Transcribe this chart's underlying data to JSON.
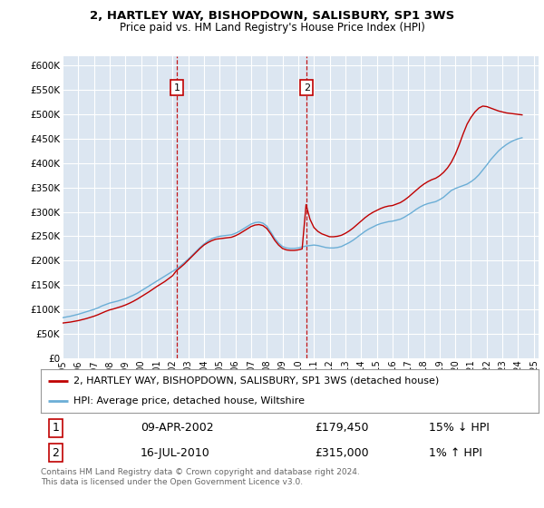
{
  "title1": "2, HARTLEY WAY, BISHOPDOWN, SALISBURY, SP1 3WS",
  "title2": "Price paid vs. HM Land Registry's House Price Index (HPI)",
  "legend_line1": "2, HARTLEY WAY, BISHOPDOWN, SALISBURY, SP1 3WS (detached house)",
  "legend_line2": "HPI: Average price, detached house, Wiltshire",
  "sale1_label": "1",
  "sale1_date": "09-APR-2002",
  "sale1_price": "£179,450",
  "sale1_hpi": "15% ↓ HPI",
  "sale1_year": 2002.27,
  "sale1_value": 179450,
  "sale2_label": "2",
  "sale2_date": "16-JUL-2010",
  "sale2_price": "£315,000",
  "sale2_hpi": "1% ↑ HPI",
  "sale2_year": 2010.54,
  "sale2_value": 315000,
  "hpi_color": "#6baed6",
  "price_color": "#c00000",
  "marker_box_color": "#c00000",
  "background_plot": "#dce6f1",
  "background_fig": "#ffffff",
  "grid_color": "#ffffff",
  "footnote": "Contains HM Land Registry data © Crown copyright and database right 2024.\nThis data is licensed under the Open Government Licence v3.0.",
  "ylim": [
    0,
    620000
  ],
  "yticks": [
    0,
    50000,
    100000,
    150000,
    200000,
    250000,
    300000,
    350000,
    400000,
    450000,
    500000,
    550000,
    600000
  ],
  "hpi_years": [
    1995.0,
    1995.25,
    1995.5,
    1995.75,
    1996.0,
    1996.25,
    1996.5,
    1996.75,
    1997.0,
    1997.25,
    1997.5,
    1997.75,
    1998.0,
    1998.25,
    1998.5,
    1998.75,
    1999.0,
    1999.25,
    1999.5,
    1999.75,
    2000.0,
    2000.25,
    2000.5,
    2000.75,
    2001.0,
    2001.25,
    2001.5,
    2001.75,
    2002.0,
    2002.25,
    2002.5,
    2002.75,
    2003.0,
    2003.25,
    2003.5,
    2003.75,
    2004.0,
    2004.25,
    2004.5,
    2004.75,
    2005.0,
    2005.25,
    2005.5,
    2005.75,
    2006.0,
    2006.25,
    2006.5,
    2006.75,
    2007.0,
    2007.25,
    2007.5,
    2007.75,
    2008.0,
    2008.25,
    2008.5,
    2008.75,
    2009.0,
    2009.25,
    2009.5,
    2009.75,
    2010.0,
    2010.25,
    2010.5,
    2010.75,
    2011.0,
    2011.25,
    2011.5,
    2011.75,
    2012.0,
    2012.25,
    2012.5,
    2012.75,
    2013.0,
    2013.25,
    2013.5,
    2013.75,
    2014.0,
    2014.25,
    2014.5,
    2014.75,
    2015.0,
    2015.25,
    2015.5,
    2015.75,
    2016.0,
    2016.25,
    2016.5,
    2016.75,
    2017.0,
    2017.25,
    2017.5,
    2017.75,
    2018.0,
    2018.25,
    2018.5,
    2018.75,
    2019.0,
    2019.25,
    2019.5,
    2019.75,
    2020.0,
    2020.25,
    2020.5,
    2020.75,
    2021.0,
    2021.25,
    2021.5,
    2021.75,
    2022.0,
    2022.25,
    2022.5,
    2022.75,
    2023.0,
    2023.25,
    2023.5,
    2023.75,
    2024.0,
    2024.25
  ],
  "hpi_values": [
    83000,
    84500,
    86000,
    88000,
    90000,
    92500,
    95000,
    97500,
    100000,
    103000,
    107000,
    110000,
    113000,
    115000,
    117000,
    119500,
    122000,
    125500,
    129000,
    133000,
    138000,
    143000,
    148000,
    153000,
    158000,
    163000,
    168000,
    173000,
    178000,
    183000,
    189000,
    196000,
    203000,
    211000,
    219000,
    227000,
    234000,
    240000,
    245000,
    248000,
    250000,
    251000,
    252000,
    253000,
    256000,
    260000,
    265000,
    270000,
    275000,
    278000,
    279000,
    277000,
    271000,
    259000,
    246000,
    236000,
    229000,
    226000,
    225000,
    225000,
    226000,
    228000,
    230000,
    231000,
    232000,
    231000,
    229000,
    227000,
    226000,
    226000,
    227000,
    229000,
    233000,
    237000,
    242000,
    248000,
    254000,
    260000,
    265000,
    269000,
    273000,
    276000,
    278000,
    280000,
    281000,
    283000,
    285000,
    289000,
    294000,
    299000,
    305000,
    310000,
    314000,
    317000,
    319000,
    321000,
    325000,
    330000,
    337000,
    344000,
    348000,
    351000,
    354000,
    357000,
    362000,
    368000,
    376000,
    386000,
    396000,
    407000,
    416000,
    425000,
    432000,
    438000,
    443000,
    447000,
    450000,
    452000
  ],
  "price_years": [
    1995.0,
    1995.25,
    1995.5,
    1995.75,
    1996.0,
    1996.25,
    1996.5,
    1996.75,
    1997.0,
    1997.25,
    1997.5,
    1997.75,
    1998.0,
    1998.25,
    1998.5,
    1998.75,
    1999.0,
    1999.25,
    1999.5,
    1999.75,
    2000.0,
    2000.25,
    2000.5,
    2000.75,
    2001.0,
    2001.25,
    2001.5,
    2001.75,
    2002.0,
    2002.25,
    2002.5,
    2002.75,
    2003.0,
    2003.25,
    2003.5,
    2003.75,
    2004.0,
    2004.25,
    2004.5,
    2004.75,
    2005.0,
    2005.25,
    2005.5,
    2005.75,
    2006.0,
    2006.25,
    2006.5,
    2006.75,
    2007.0,
    2007.25,
    2007.5,
    2007.75,
    2008.0,
    2008.25,
    2008.5,
    2008.75,
    2009.0,
    2009.25,
    2009.5,
    2009.75,
    2010.0,
    2010.25,
    2010.5,
    2010.75,
    2011.0,
    2011.25,
    2011.5,
    2011.75,
    2012.0,
    2012.25,
    2012.5,
    2012.75,
    2013.0,
    2013.25,
    2013.5,
    2013.75,
    2014.0,
    2014.25,
    2014.5,
    2014.75,
    2015.0,
    2015.25,
    2015.5,
    2015.75,
    2016.0,
    2016.25,
    2016.5,
    2016.75,
    2017.0,
    2017.25,
    2017.5,
    2017.75,
    2018.0,
    2018.25,
    2018.5,
    2018.75,
    2019.0,
    2019.25,
    2019.5,
    2019.75,
    2020.0,
    2020.25,
    2020.5,
    2020.75,
    2021.0,
    2021.25,
    2021.5,
    2021.75,
    2022.0,
    2022.25,
    2022.5,
    2022.75,
    2023.0,
    2023.25,
    2023.5,
    2023.75,
    2024.0,
    2024.25
  ],
  "price_values": [
    72000,
    73000,
    74000,
    75500,
    77000,
    79000,
    81000,
    83500,
    86000,
    89000,
    92500,
    96000,
    99000,
    101000,
    103500,
    106000,
    109000,
    112500,
    116500,
    121000,
    126000,
    131000,
    136000,
    141500,
    147000,
    152000,
    157000,
    163000,
    169000,
    179450,
    186000,
    193000,
    201000,
    209000,
    217000,
    225000,
    232000,
    237000,
    241000,
    244000,
    245000,
    246000,
    247000,
    248000,
    251000,
    255000,
    260000,
    265000,
    270000,
    273000,
    274000,
    272000,
    266000,
    255000,
    242000,
    232000,
    225000,
    222000,
    221000,
    221000,
    222000,
    224000,
    315000,
    285000,
    268000,
    260000,
    255000,
    252000,
    249000,
    249000,
    250000,
    252000,
    256000,
    261000,
    267000,
    274000,
    281000,
    288000,
    294000,
    299000,
    303000,
    307000,
    310000,
    312000,
    313000,
    316000,
    319000,
    324000,
    330000,
    337000,
    344000,
    351000,
    357000,
    362000,
    366000,
    369000,
    374000,
    381000,
    390000,
    402000,
    418000,
    438000,
    460000,
    480000,
    494000,
    505000,
    513000,
    517000,
    516000,
    513000,
    510000,
    507000,
    505000,
    503000,
    502000,
    501000,
    500000,
    499000
  ],
  "xtick_years": [
    1995,
    1996,
    1997,
    1998,
    1999,
    2000,
    2001,
    2002,
    2003,
    2004,
    2005,
    2006,
    2007,
    2008,
    2009,
    2010,
    2011,
    2012,
    2013,
    2014,
    2015,
    2016,
    2017,
    2018,
    2019,
    2020,
    2021,
    2022,
    2023,
    2024,
    2025
  ]
}
